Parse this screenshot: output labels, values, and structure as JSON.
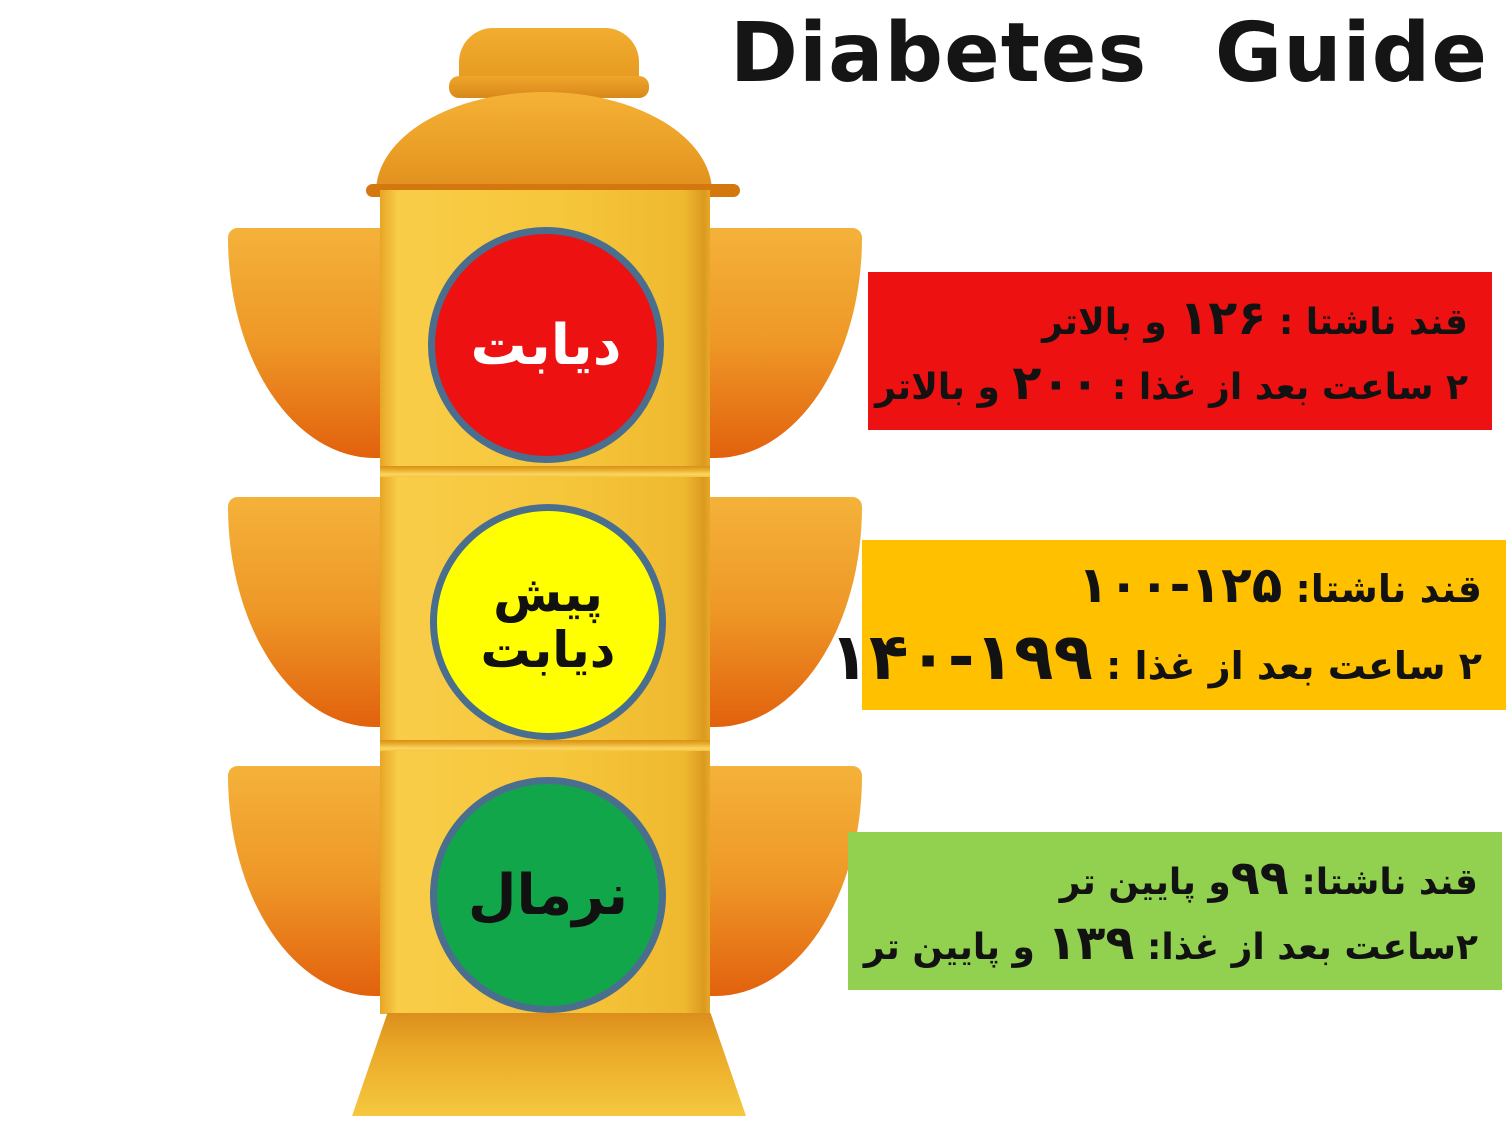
{
  "title": "Diabetes Guide",
  "traffic_light": {
    "name": "blood-sugar-traffic-light",
    "lights": [
      {
        "id": "diabetes",
        "label": "دیابت",
        "color": "#ED1111"
      },
      {
        "id": "prediabetes",
        "label_line1": "پیش",
        "label_line2": "دیابت",
        "color": "#FFFF00"
      },
      {
        "id": "normal",
        "label": "نرمال",
        "color": "#12A64B"
      }
    ],
    "border_color": "#4A6E8E",
    "body_color": "#F6C63B",
    "wing_color_top": "#F4B23A",
    "wing_color_bottom": "#E2610D"
  },
  "info_boxes": [
    {
      "id": "diabetes",
      "bg": "#ED1111",
      "line1_pre": "قند ناشتا : ",
      "line1_num": "۱۲۶",
      "line1_post": " و بالاتر",
      "line2_pre": "۲ ساعت بعد از غذا : ",
      "line2_num": "۲۰۰",
      "line2_post": " و بالاتر"
    },
    {
      "id": "prediabetes",
      "bg": "#FFC000",
      "line1_pre": "قند ناشتا:  ",
      "line1_num": "۱۰۰-۱۲۵",
      "line1_post": "",
      "line2_pre": "۲ ساعت بعد از غذا : ",
      "line2_num": "۱۴۰-۱۹۹",
      "line2_post": ""
    },
    {
      "id": "normal",
      "bg": "#92D050",
      "line1_pre": "قند ناشتا:  ",
      "line1_num": "۹۹",
      "line1_post": "و  پایین تر",
      "line2_pre": "۲ساعت بعد از غذا: ",
      "line2_num": "۱۳۹",
      "line2_post": " و پایین تر"
    }
  ]
}
